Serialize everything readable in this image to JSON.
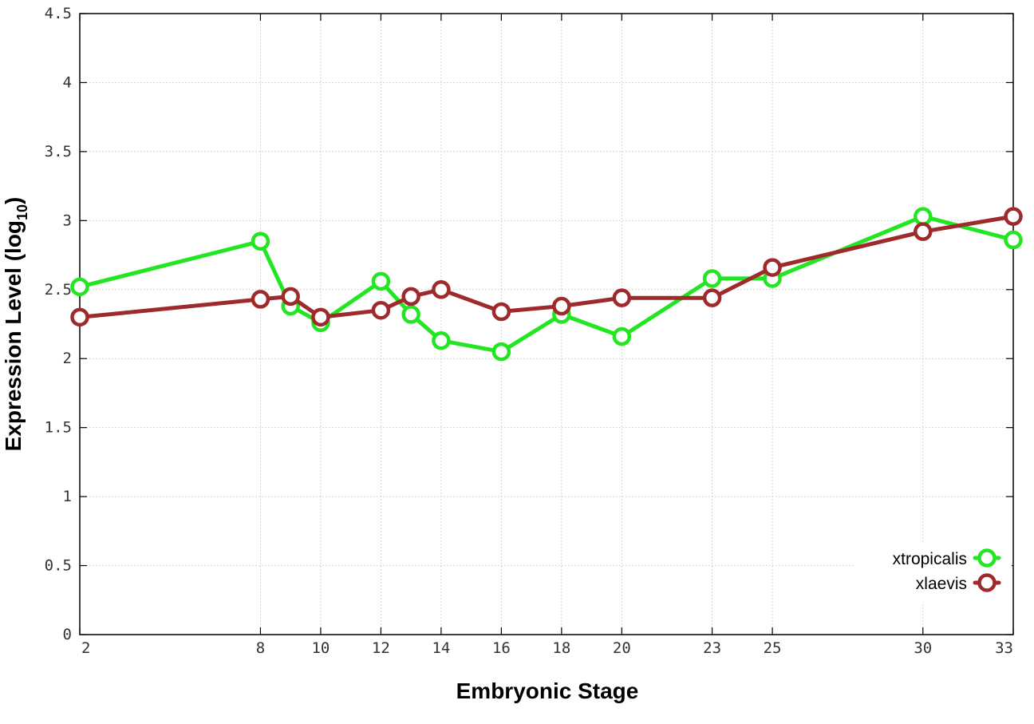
{
  "chart_data": {
    "type": "line",
    "xlabel": "Embryonic Stage",
    "ylabel": {
      "main": "Expression Level (log",
      "sub": "10",
      "close": ")"
    },
    "x": [
      2,
      8,
      9,
      10,
      12,
      13,
      14,
      16,
      18,
      20,
      23,
      25,
      30,
      33
    ],
    "xticks": [
      "2",
      "8",
      "10",
      "12",
      "14",
      "16",
      "18",
      "20",
      "23",
      "25",
      "30",
      "33"
    ],
    "xtick_values": [
      2,
      8,
      10,
      12,
      14,
      16,
      18,
      20,
      23,
      25,
      30,
      33
    ],
    "xlim": [
      2,
      33
    ],
    "ylim": [
      0,
      4.5
    ],
    "yticks": [
      "0",
      "0.5",
      "1",
      "1.5",
      "2",
      "2.5",
      "3",
      "3.5",
      "4",
      "4.5"
    ],
    "ytick_values": [
      0,
      0.5,
      1,
      1.5,
      2,
      2.5,
      3,
      3.5,
      4,
      4.5
    ],
    "grid": true,
    "legend_position": "bottom-right",
    "series": [
      {
        "name": "xtropicalis",
        "color": "#22e622",
        "values": [
          2.52,
          2.85,
          2.38,
          2.26,
          2.56,
          2.32,
          2.13,
          2.05,
          2.32,
          2.16,
          2.58,
          2.58,
          3.03,
          2.86
        ]
      },
      {
        "name": "xlaevis",
        "color": "#9e2a2b",
        "values": [
          2.3,
          2.43,
          2.45,
          2.3,
          2.35,
          2.45,
          2.5,
          2.34,
          2.38,
          2.44,
          2.44,
          2.66,
          2.92,
          3.03
        ]
      }
    ]
  }
}
